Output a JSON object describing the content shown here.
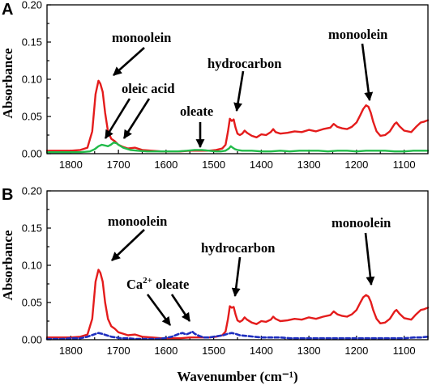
{
  "chart_data": [
    {
      "panel_label": "A",
      "type": "line",
      "xlim": [
        1850,
        1050
      ],
      "ylim": [
        0,
        0.2
      ],
      "xticks": [
        "1800",
        "1700",
        "1600",
        "1500",
        "1400",
        "1300",
        "1200",
        "1100"
      ],
      "yticks": [
        "0.00",
        "0.05",
        "0.10",
        "0.15",
        "0.20"
      ],
      "ylabel": "Absorbance",
      "series": [
        {
          "color": "#e41c1c",
          "style": "solid",
          "x": [
            1850,
            1800,
            1780,
            1765,
            1755,
            1748,
            1742,
            1738,
            1733,
            1728,
            1722,
            1715,
            1708,
            1700,
            1690,
            1680,
            1665,
            1650,
            1630,
            1610,
            1590,
            1570,
            1550,
            1530,
            1510,
            1495,
            1482,
            1475,
            1470,
            1466,
            1462,
            1458,
            1454,
            1450,
            1445,
            1440,
            1435,
            1430,
            1420,
            1410,
            1400,
            1390,
            1380,
            1375,
            1370,
            1360,
            1345,
            1330,
            1315,
            1300,
            1285,
            1270,
            1255,
            1248,
            1240,
            1230,
            1220,
            1210,
            1200,
            1192,
            1186,
            1180,
            1175,
            1170,
            1165,
            1158,
            1150,
            1140,
            1130,
            1120,
            1116,
            1110,
            1100,
            1085,
            1075,
            1065,
            1058,
            1050
          ],
          "y": [
            0.004,
            0.004,
            0.005,
            0.008,
            0.03,
            0.08,
            0.098,
            0.094,
            0.083,
            0.055,
            0.03,
            0.02,
            0.017,
            0.012,
            0.009,
            0.007,
            0.008,
            0.005,
            0.004,
            0.003,
            0.003,
            0.003,
            0.004,
            0.004,
            0.004,
            0.005,
            0.007,
            0.012,
            0.03,
            0.047,
            0.044,
            0.046,
            0.035,
            0.027,
            0.025,
            0.027,
            0.031,
            0.028,
            0.024,
            0.022,
            0.026,
            0.025,
            0.029,
            0.033,
            0.029,
            0.027,
            0.028,
            0.03,
            0.029,
            0.032,
            0.03,
            0.033,
            0.035,
            0.04,
            0.036,
            0.034,
            0.033,
            0.036,
            0.042,
            0.052,
            0.06,
            0.065,
            0.063,
            0.055,
            0.043,
            0.03,
            0.024,
            0.025,
            0.03,
            0.04,
            0.042,
            0.037,
            0.031,
            0.029,
            0.036,
            0.042,
            0.043,
            0.045
          ]
        },
        {
          "color": "#22bb4a",
          "style": "solid",
          "x": [
            1850,
            1780,
            1760,
            1750,
            1742,
            1735,
            1728,
            1722,
            1716,
            1710,
            1704,
            1700,
            1690,
            1675,
            1660,
            1640,
            1620,
            1600,
            1575,
            1555,
            1540,
            1525,
            1510,
            1495,
            1485,
            1475,
            1468,
            1464,
            1460,
            1455,
            1450,
            1440,
            1430,
            1420,
            1400,
            1380,
            1360,
            1340,
            1320,
            1300,
            1280,
            1260,
            1240,
            1220,
            1200,
            1180,
            1160,
            1140,
            1120,
            1100,
            1080,
            1060,
            1050
          ],
          "y": [
            0.002,
            0.002,
            0.003,
            0.006,
            0.01,
            0.012,
            0.011,
            0.01,
            0.012,
            0.015,
            0.014,
            0.012,
            0.008,
            0.005,
            0.004,
            0.003,
            0.003,
            0.003,
            0.003,
            0.004,
            0.005,
            0.005,
            0.004,
            0.003,
            0.003,
            0.004,
            0.007,
            0.01,
            0.008,
            0.006,
            0.005,
            0.004,
            0.004,
            0.004,
            0.003,
            0.003,
            0.004,
            0.003,
            0.004,
            0.004,
            0.004,
            0.003,
            0.004,
            0.004,
            0.003,
            0.004,
            0.004,
            0.004,
            0.003,
            0.003,
            0.004,
            0.004,
            0.004
          ]
        }
      ],
      "annotations": [
        {
          "text": "monoolein"
        },
        {
          "text": "oleic acid"
        },
        {
          "text": "oleate"
        },
        {
          "text": "hydrocarbon"
        },
        {
          "text": "monoolein"
        }
      ]
    },
    {
      "panel_label": "B",
      "type": "line",
      "xlim": [
        1850,
        1050
      ],
      "ylim": [
        0,
        0.2
      ],
      "xticks": [
        "1800",
        "1700",
        "1600",
        "1500",
        "1400",
        "1300",
        "1200",
        "1100"
      ],
      "yticks": [
        "0.00",
        "0.05",
        "0.10",
        "0.15",
        "0.20"
      ],
      "xlabel": "Wavenumber (cm⁻¹)",
      "ylabel": "Absorbance",
      "series": [
        {
          "color": "#e41c1c",
          "style": "solid",
          "x": [
            1850,
            1800,
            1780,
            1765,
            1755,
            1748,
            1742,
            1738,
            1733,
            1728,
            1722,
            1715,
            1708,
            1700,
            1690,
            1680,
            1665,
            1650,
            1630,
            1610,
            1590,
            1570,
            1550,
            1530,
            1510,
            1495,
            1482,
            1475,
            1470,
            1466,
            1462,
            1458,
            1454,
            1450,
            1445,
            1440,
            1435,
            1430,
            1420,
            1410,
            1400,
            1390,
            1380,
            1375,
            1370,
            1360,
            1345,
            1330,
            1315,
            1300,
            1285,
            1270,
            1255,
            1248,
            1240,
            1230,
            1220,
            1210,
            1200,
            1192,
            1186,
            1180,
            1175,
            1170,
            1165,
            1158,
            1150,
            1140,
            1130,
            1120,
            1116,
            1110,
            1100,
            1085,
            1075,
            1065,
            1058,
            1050
          ],
          "y": [
            0.003,
            0.003,
            0.004,
            0.007,
            0.028,
            0.078,
            0.094,
            0.09,
            0.078,
            0.05,
            0.028,
            0.018,
            0.015,
            0.01,
            0.008,
            0.006,
            0.007,
            0.004,
            0.003,
            0.002,
            0.002,
            0.002,
            0.003,
            0.003,
            0.003,
            0.004,
            0.006,
            0.011,
            0.028,
            0.045,
            0.043,
            0.044,
            0.034,
            0.026,
            0.024,
            0.026,
            0.03,
            0.027,
            0.023,
            0.021,
            0.025,
            0.024,
            0.027,
            0.031,
            0.028,
            0.025,
            0.026,
            0.028,
            0.027,
            0.03,
            0.028,
            0.031,
            0.033,
            0.038,
            0.034,
            0.032,
            0.031,
            0.034,
            0.04,
            0.05,
            0.057,
            0.06,
            0.058,
            0.051,
            0.04,
            0.028,
            0.022,
            0.023,
            0.028,
            0.038,
            0.04,
            0.035,
            0.029,
            0.027,
            0.034,
            0.04,
            0.041,
            0.043
          ]
        },
        {
          "color": "#1f2fbf",
          "style": "dashed",
          "x": [
            1850,
            1820,
            1800,
            1780,
            1765,
            1752,
            1742,
            1735,
            1725,
            1715,
            1705,
            1695,
            1680,
            1665,
            1650,
            1635,
            1620,
            1605,
            1595,
            1588,
            1580,
            1572,
            1565,
            1558,
            1550,
            1545,
            1540,
            1530,
            1520,
            1510,
            1500,
            1490,
            1480,
            1470,
            1462,
            1455,
            1445,
            1430,
            1415,
            1400,
            1380,
            1360,
            1340,
            1320,
            1300,
            1280,
            1260,
            1240,
            1220,
            1200,
            1180,
            1160,
            1140,
            1120,
            1100,
            1080,
            1065,
            1050
          ],
          "y": [
            0.001,
            0.001,
            0.002,
            0.002,
            0.004,
            0.007,
            0.009,
            0.008,
            0.006,
            0.004,
            0.003,
            0.002,
            0.002,
            0.001,
            0.001,
            0.001,
            0.001,
            0.002,
            0.003,
            0.004,
            0.006,
            0.008,
            0.009,
            0.007,
            0.009,
            0.011,
            0.008,
            0.005,
            0.003,
            0.003,
            0.004,
            0.005,
            0.006,
            0.008,
            0.009,
            0.008,
            0.006,
            0.005,
            0.004,
            0.003,
            0.003,
            0.003,
            0.002,
            0.002,
            0.002,
            0.002,
            0.002,
            0.002,
            0.002,
            0.002,
            0.002,
            0.002,
            0.002,
            0.002,
            0.002,
            0.003,
            0.003,
            0.004
          ]
        }
      ],
      "annotations": [
        {
          "text": "monoolein"
        },
        {
          "text": "hydrocarbon"
        },
        {
          "text": "Ca",
          "sup": "2+",
          "rest": " oleate"
        },
        {
          "text": "monoolein"
        }
      ]
    }
  ]
}
